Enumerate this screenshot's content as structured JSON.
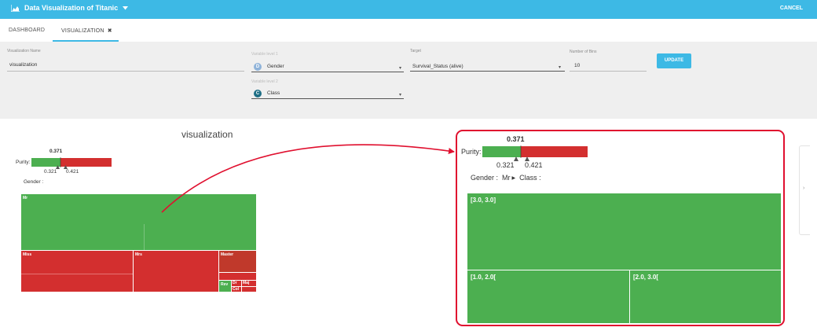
{
  "app": {
    "title": "Data Visualization of Titanic",
    "cancel_label": "CANCEL",
    "accent": "#3db9e5"
  },
  "tabs": [
    {
      "label": "DASHBOARD"
    },
    {
      "label": "VISUALIZATION"
    }
  ],
  "form": {
    "name_label": "Visualization Name",
    "name_value": "visualization",
    "var1_label": "Variable level 1",
    "var1_chip": "D",
    "var1_value": "Gender",
    "var2_label": "Variable level 2",
    "var2_chip": "C",
    "var2_value": "Class",
    "target_label": "Target",
    "target_value": "Survival_Status (alive)",
    "bins_label": "Number of Bins",
    "bins_value": "10",
    "update_label": "UPDATE"
  },
  "viz": {
    "title": "visualization",
    "purity_label": "Purity:",
    "purity_value": "0.371",
    "purity_low": "0.321",
    "purity_high": "0.421",
    "breadcrumb_root": "Gender :",
    "breadcrumb_node": "Mr",
    "breadcrumb_next": "Class :",
    "colors": {
      "positive": "#4caf50",
      "negative": "#d32f2f"
    }
  },
  "treemap_main": [
    {
      "label": "Mr",
      "color": "green"
    },
    {
      "label": "Miss",
      "color": "red"
    },
    {
      "label": "Mrs",
      "color": "red"
    },
    {
      "label": "Master",
      "color": "darkred"
    },
    {
      "label": "Rev",
      "color": "green"
    },
    {
      "label": "Dr",
      "color": "red"
    },
    {
      "label": "Col",
      "color": "red"
    },
    {
      "label": "Maj",
      "color": "red"
    }
  ],
  "treemap_zoom": [
    {
      "label": "[3.0, 3.0]"
    },
    {
      "label": "[1.0, 2.0["
    },
    {
      "label": "[2.0, 3.0["
    }
  ]
}
